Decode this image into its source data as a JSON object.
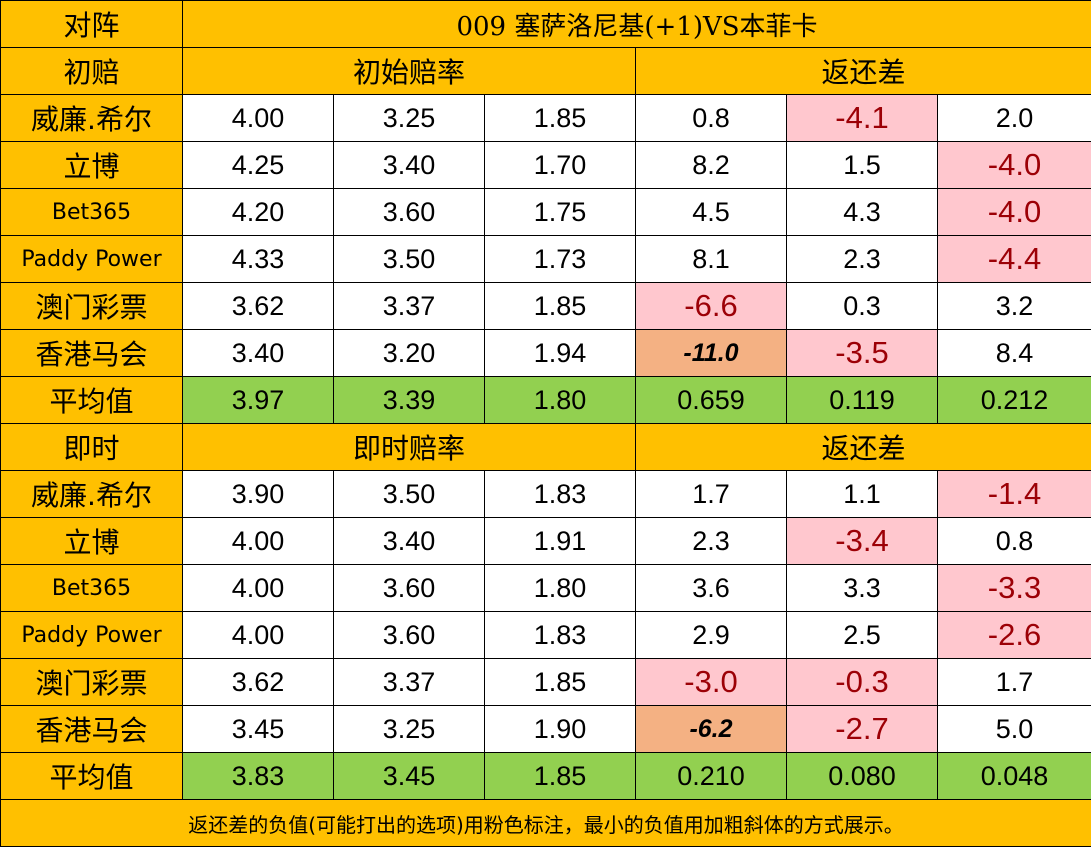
{
  "header": {
    "corner_label": "对阵",
    "match_title": "009  塞萨洛尼基(+1)VS本菲卡"
  },
  "sections": [
    {
      "label": "初赔",
      "odds_header": "初始赔率",
      "diff_header": "返还差",
      "rows": [
        {
          "company": "威廉.希尔",
          "odds": [
            "4.00",
            "3.25",
            "1.85"
          ],
          "diff": [
            "0.8",
            "-4.1",
            "2.0"
          ],
          "styles": [
            "",
            "neg",
            ""
          ]
        },
        {
          "company": "立博",
          "odds": [
            "4.25",
            "3.40",
            "1.70"
          ],
          "diff": [
            "8.2",
            "1.5",
            "-4.0"
          ],
          "styles": [
            "",
            "",
            "neg"
          ]
        },
        {
          "company": "Bet365",
          "odds": [
            "4.20",
            "3.60",
            "1.75"
          ],
          "diff": [
            "4.5",
            "4.3",
            "-4.0"
          ],
          "styles": [
            "",
            "",
            "neg"
          ]
        },
        {
          "company": "Paddy Power",
          "odds": [
            "4.33",
            "3.50",
            "1.73"
          ],
          "diff": [
            "8.1",
            "2.3",
            "-4.4"
          ],
          "styles": [
            "",
            "",
            "neg"
          ]
        },
        {
          "company": "澳门彩票",
          "odds": [
            "3.62",
            "3.37",
            "1.85"
          ],
          "diff": [
            "-6.6",
            "0.3",
            "3.2"
          ],
          "styles": [
            "neg",
            "",
            ""
          ]
        },
        {
          "company": "香港马会",
          "odds": [
            "3.40",
            "3.20",
            "1.94"
          ],
          "diff": [
            "-11.0",
            "-3.5",
            "8.4"
          ],
          "styles": [
            "min",
            "neg",
            ""
          ]
        }
      ],
      "average": {
        "label": "平均值",
        "values": [
          "3.97",
          "3.39",
          "1.80",
          "0.659",
          "0.119",
          "0.212"
        ]
      }
    },
    {
      "label": "即时",
      "odds_header": "即时赔率",
      "diff_header": "返还差",
      "rows": [
        {
          "company": "威廉.希尔",
          "odds": [
            "3.90",
            "3.50",
            "1.83"
          ],
          "diff": [
            "1.7",
            "1.1",
            "-1.4"
          ],
          "styles": [
            "",
            "",
            "neg"
          ]
        },
        {
          "company": "立博",
          "odds": [
            "4.00",
            "3.40",
            "1.91"
          ],
          "diff": [
            "2.3",
            "-3.4",
            "0.8"
          ],
          "styles": [
            "",
            "neg",
            ""
          ]
        },
        {
          "company": "Bet365",
          "odds": [
            "4.00",
            "3.60",
            "1.80"
          ],
          "diff": [
            "3.6",
            "3.3",
            "-3.3"
          ],
          "styles": [
            "",
            "",
            "neg"
          ]
        },
        {
          "company": "Paddy Power",
          "odds": [
            "4.00",
            "3.60",
            "1.83"
          ],
          "diff": [
            "2.9",
            "2.5",
            "-2.6"
          ],
          "styles": [
            "",
            "",
            "neg"
          ]
        },
        {
          "company": "澳门彩票",
          "odds": [
            "3.62",
            "3.37",
            "1.85"
          ],
          "diff": [
            "-3.0",
            "-0.3",
            "1.7"
          ],
          "styles": [
            "neg",
            "neg",
            ""
          ]
        },
        {
          "company": "香港马会",
          "odds": [
            "3.45",
            "3.25",
            "1.90"
          ],
          "diff": [
            "-6.2",
            "-2.7",
            "5.0"
          ],
          "styles": [
            "min",
            "neg",
            ""
          ]
        }
      ],
      "average": {
        "label": "平均值",
        "values": [
          "3.83",
          "3.45",
          "1.85",
          "0.210",
          "0.080",
          "0.048"
        ]
      }
    }
  ],
  "footer_note": "返还差的负值(可能打出的选项)用粉色标注，最小的负值用加粗斜体的方式展示。",
  "colors": {
    "header_orange": "#ffc000",
    "average_green": "#92d050",
    "negative_pink": "#ffc7ce",
    "min_orange": "#f4b183"
  }
}
